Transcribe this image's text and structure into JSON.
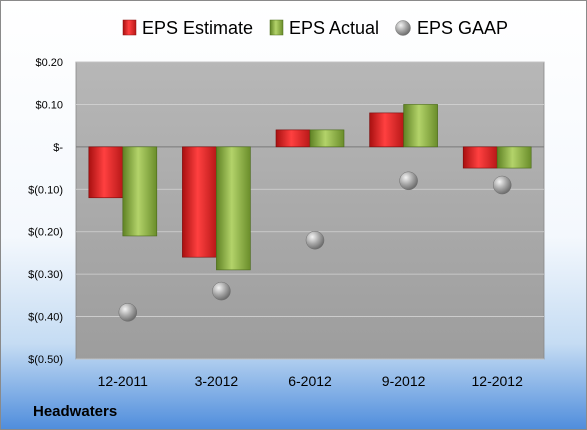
{
  "colors": {
    "estimate": "#e02020",
    "actual": "#8db040",
    "gaap": "#a8a8a8",
    "plot_background": "#ababab"
  },
  "legend": {
    "items": [
      {
        "label": "EPS Estimate",
        "icon": "red-bar-swatch"
      },
      {
        "label": "EPS Actual",
        "icon": "green-bar-swatch"
      },
      {
        "label": "EPS GAAP",
        "icon": "gray-sphere-swatch"
      }
    ]
  },
  "footer": {
    "company": "Headwaters"
  },
  "chart_data": {
    "type": "bar",
    "categories": [
      "12-2011",
      "3-2012",
      "6-2012",
      "9-2012",
      "12-2012"
    ],
    "series": [
      {
        "name": "EPS Estimate",
        "type": "bar",
        "values": [
          -0.12,
          -0.26,
          0.04,
          0.08,
          -0.05
        ]
      },
      {
        "name": "EPS Actual",
        "type": "bar",
        "values": [
          -0.21,
          -0.29,
          0.04,
          0.1,
          -0.05
        ]
      },
      {
        "name": "EPS GAAP",
        "type": "scatter",
        "values": [
          -0.39,
          -0.34,
          -0.22,
          -0.08,
          -0.09
        ]
      }
    ],
    "ylim": [
      -0.5,
      0.2
    ],
    "yticks": [
      {
        "value": 0.2,
        "label": "$0.20"
      },
      {
        "value": 0.1,
        "label": "$0.10"
      },
      {
        "value": 0.0,
        "label": "$-"
      },
      {
        "value": -0.1,
        "label": "$(0.10)"
      },
      {
        "value": -0.2,
        "label": "$(0.20)"
      },
      {
        "value": -0.3,
        "label": "$(0.30)"
      },
      {
        "value": -0.4,
        "label": "$(0.40)"
      },
      {
        "value": -0.5,
        "label": "$(0.50)"
      }
    ],
    "grid": true,
    "legend_position": "top"
  }
}
